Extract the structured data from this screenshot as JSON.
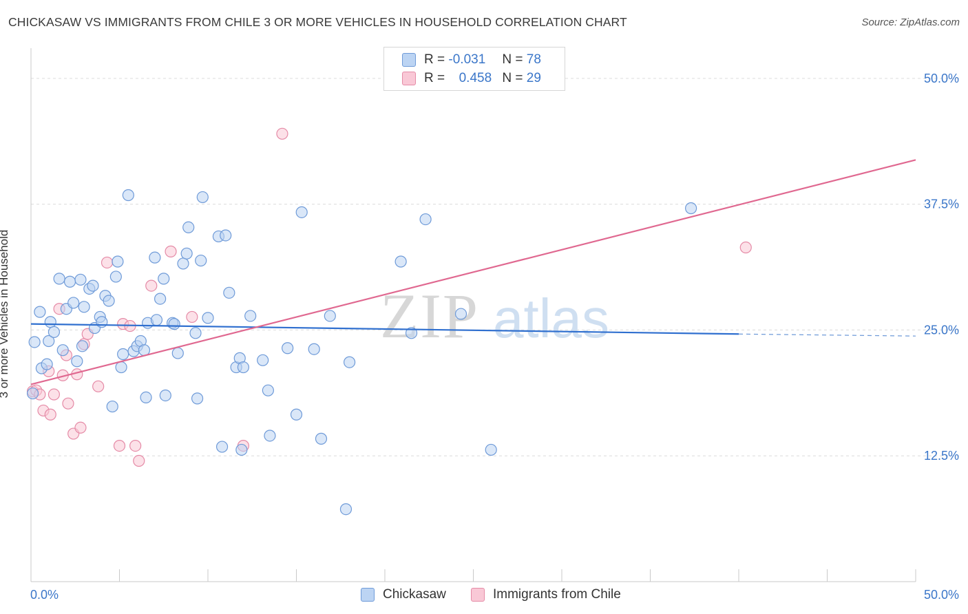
{
  "header": {
    "title": "CHICKASAW VS IMMIGRANTS FROM CHILE 3 OR MORE VEHICLES IN HOUSEHOLD CORRELATION CHART",
    "source": "Source: ZipAtlas.com"
  },
  "watermark": {
    "zip": "ZIP",
    "atlas": "atlas"
  },
  "legend": {
    "r_label": "R =",
    "n_label": "N =",
    "rows": [
      {
        "r": "-0.031",
        "n": "78",
        "color": "#6e9ad8"
      },
      {
        "r": "0.458",
        "n": "29",
        "color": "#e58aa6"
      }
    ]
  },
  "bottom_legend": {
    "series_a": "Chickasaw",
    "series_b": "Immigrants from Chile"
  },
  "chart_data": {
    "type": "scatter",
    "title": "CHICKASAW VS IMMIGRANTS FROM CHILE 3 OR MORE VEHICLES IN HOUSEHOLD CORRELATION CHART",
    "xlabel": "",
    "ylabel": "3 or more Vehicles in Household",
    "xlim": [
      0,
      50
    ],
    "ylim": [
      0,
      53
    ],
    "x_tick_labels": [
      "0.0%",
      "50.0%"
    ],
    "y_ticks": [
      12.5,
      25.0,
      37.5,
      50.0
    ],
    "y_tick_labels": [
      "12.5%",
      "25.0%",
      "37.5%",
      "50.0%"
    ],
    "grid": true,
    "legend_position": "top-center",
    "series": [
      {
        "name": "Chickasaw",
        "color": "#6e9ad8",
        "fill": "#bcd4f3",
        "trend": {
          "x0": 0.0,
          "y0": 25.6,
          "x1": 40.0,
          "y1": 24.6,
          "dash_to": 50.0,
          "dash_y": 24.4
        },
        "points": [
          [
            0.2,
            23.8
          ],
          [
            0.5,
            26.8
          ],
          [
            0.6,
            21.2
          ],
          [
            0.9,
            21.6
          ],
          [
            1.0,
            23.9
          ],
          [
            1.1,
            25.8
          ],
          [
            1.3,
            24.8
          ],
          [
            1.6,
            30.1
          ],
          [
            1.8,
            23.0
          ],
          [
            2.0,
            27.1
          ],
          [
            2.2,
            29.8
          ],
          [
            2.4,
            27.7
          ],
          [
            2.6,
            21.9
          ],
          [
            2.8,
            30.0
          ],
          [
            2.9,
            23.4
          ],
          [
            3.0,
            27.3
          ],
          [
            3.3,
            29.1
          ],
          [
            3.5,
            29.4
          ],
          [
            3.6,
            25.2
          ],
          [
            3.9,
            26.3
          ],
          [
            4.0,
            25.8
          ],
          [
            4.2,
            28.4
          ],
          [
            4.4,
            27.9
          ],
          [
            4.6,
            17.4
          ],
          [
            4.8,
            30.3
          ],
          [
            4.9,
            31.8
          ],
          [
            5.1,
            21.3
          ],
          [
            5.2,
            22.6
          ],
          [
            5.5,
            38.4
          ],
          [
            5.8,
            22.9
          ],
          [
            6.0,
            23.4
          ],
          [
            6.2,
            23.9
          ],
          [
            6.4,
            23.0
          ],
          [
            6.5,
            18.3
          ],
          [
            6.6,
            25.7
          ],
          [
            7.0,
            32.2
          ],
          [
            7.1,
            26.0
          ],
          [
            7.3,
            28.1
          ],
          [
            7.5,
            30.1
          ],
          [
            7.6,
            18.5
          ],
          [
            8.0,
            25.7
          ],
          [
            8.1,
            25.6
          ],
          [
            8.3,
            22.7
          ],
          [
            8.6,
            31.6
          ],
          [
            8.8,
            32.6
          ],
          [
            8.9,
            35.2
          ],
          [
            9.3,
            24.7
          ],
          [
            9.4,
            18.2
          ],
          [
            9.6,
            31.9
          ],
          [
            9.7,
            38.2
          ],
          [
            10.0,
            26.2
          ],
          [
            10.6,
            34.3
          ],
          [
            10.8,
            13.4
          ],
          [
            11.0,
            34.4
          ],
          [
            11.2,
            28.7
          ],
          [
            11.6,
            21.3
          ],
          [
            11.8,
            22.2
          ],
          [
            11.9,
            13.1
          ],
          [
            12.0,
            21.3
          ],
          [
            12.4,
            26.4
          ],
          [
            13.1,
            22.0
          ],
          [
            13.4,
            19.0
          ],
          [
            13.5,
            14.5
          ],
          [
            14.5,
            23.2
          ],
          [
            15.0,
            16.6
          ],
          [
            15.3,
            36.7
          ],
          [
            16.0,
            23.1
          ],
          [
            16.4,
            14.2
          ],
          [
            16.9,
            26.4
          ],
          [
            17.8,
            7.2
          ],
          [
            18.0,
            21.8
          ],
          [
            20.9,
            31.8
          ],
          [
            21.5,
            24.7
          ],
          [
            22.3,
            36.0
          ],
          [
            24.3,
            26.6
          ],
          [
            26.0,
            13.1
          ],
          [
            37.3,
            37.1
          ],
          [
            0.1,
            18.7
          ]
        ]
      },
      {
        "name": "Immigrants from Chile",
        "color": "#e58aa6",
        "fill": "#f9c8d6",
        "trend": {
          "x0": 0.0,
          "y0": 19.6,
          "x1": 50.0,
          "y1": 41.9
        },
        "points": [
          [
            0.1,
            18.9
          ],
          [
            0.3,
            19.0
          ],
          [
            0.5,
            18.6
          ],
          [
            0.7,
            17.0
          ],
          [
            1.0,
            20.9
          ],
          [
            1.1,
            16.6
          ],
          [
            1.3,
            18.6
          ],
          [
            1.6,
            27.1
          ],
          [
            1.8,
            20.5
          ],
          [
            2.0,
            22.5
          ],
          [
            2.1,
            17.7
          ],
          [
            2.4,
            14.7
          ],
          [
            2.6,
            20.6
          ],
          [
            2.8,
            15.3
          ],
          [
            3.0,
            23.6
          ],
          [
            3.2,
            24.6
          ],
          [
            3.8,
            19.4
          ],
          [
            4.3,
            31.7
          ],
          [
            5.0,
            13.5
          ],
          [
            5.2,
            25.6
          ],
          [
            5.6,
            25.4
          ],
          [
            5.9,
            13.5
          ],
          [
            6.1,
            12.0
          ],
          [
            6.8,
            29.4
          ],
          [
            7.9,
            32.8
          ],
          [
            9.1,
            26.3
          ],
          [
            12.0,
            13.5
          ],
          [
            14.2,
            44.5
          ],
          [
            40.4,
            33.2
          ]
        ]
      }
    ]
  }
}
